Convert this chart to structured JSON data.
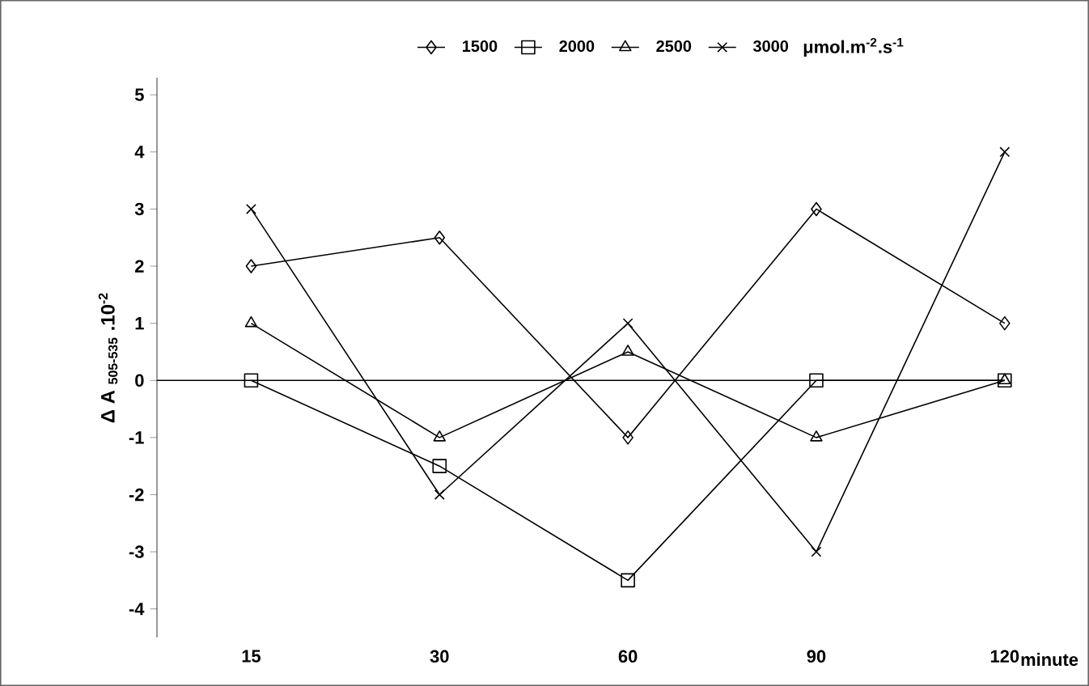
{
  "chart_data": {
    "type": "line",
    "xlabel": "minute",
    "ylabel": "Δ A $_{505-535}$ .10$^{-2}$",
    "legend_title": "μmol.m$^{-2}$.s$^{-1}$",
    "categories": [
      "15",
      "30",
      "60",
      "90",
      "120"
    ],
    "ylim": [
      -4.5,
      5.3
    ],
    "yticks": [
      -4,
      -3,
      -2,
      -1,
      0,
      1,
      2,
      3,
      4,
      5
    ],
    "legend": "top",
    "grid": false,
    "line_style": "solid",
    "series": [
      {
        "name": "1500",
        "color": "#000000",
        "marker": "diamond",
        "values": [
          2,
          2.5,
          -1,
          3,
          1
        ]
      },
      {
        "name": "2000",
        "color": "#000000",
        "marker": "square",
        "values": [
          0,
          -1.5,
          -3.5,
          0,
          0
        ]
      },
      {
        "name": "2500",
        "color": "#000000",
        "marker": "triangle",
        "values": [
          1,
          -1,
          0.5,
          -1,
          0
        ]
      },
      {
        "name": "3000",
        "color": "#000000",
        "marker": "cross",
        "values": [
          3,
          -2,
          1,
          -3,
          4
        ]
      }
    ],
    "ref_lines": [
      {
        "axis": "y",
        "value": 0,
        "color": "#000000"
      }
    ]
  }
}
